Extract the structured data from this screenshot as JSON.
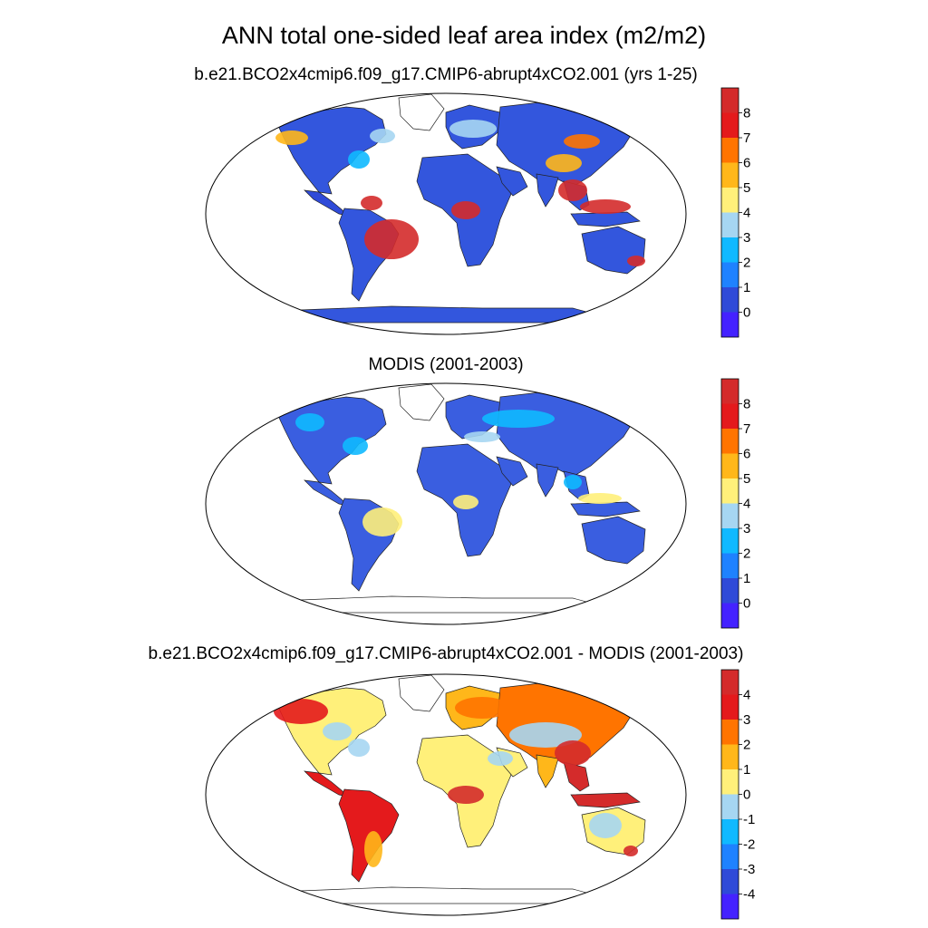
{
  "title": "ANN total one-sided leaf area index (m2/m2)",
  "chart_data": [
    {
      "type": "heatmap",
      "title": "b.e21.BCO2x4cmip6.f09_g17.CMIP6-abrupt4xCO2.001 (yrs 1-25)",
      "colorbar_ticks": [
        "8",
        "7",
        "6",
        "5",
        "4",
        "3",
        "2",
        "1",
        "0"
      ],
      "colorbar_colors": [
        "#d42b2b",
        "#e41a1c",
        "#ff7400",
        "#ffb71a",
        "#fff07a",
        "#a6d6f2",
        "#10b9ff",
        "#1f82ff",
        "#2f4ad8",
        "#4422ff"
      ]
    },
    {
      "type": "heatmap",
      "title": "MODIS (2001-2003)",
      "colorbar_ticks": [
        "8",
        "7",
        "6",
        "5",
        "4",
        "3",
        "2",
        "1",
        "0"
      ],
      "colorbar_colors": [
        "#d42b2b",
        "#e41a1c",
        "#ff7400",
        "#ffb71a",
        "#fff07a",
        "#a6d6f2",
        "#10b9ff",
        "#1f82ff",
        "#2f4ad8",
        "#4422ff"
      ]
    },
    {
      "type": "heatmap",
      "title": "b.e21.BCO2x4cmip6.f09_g17.CMIP6-abrupt4xCO2.001 - MODIS (2001-2003)",
      "colorbar_ticks": [
        "4",
        "3",
        "2",
        "1",
        "0",
        "-1",
        "-2",
        "-3",
        "-4"
      ],
      "colorbar_colors": [
        "#d42b2b",
        "#e41a1c",
        "#ff7400",
        "#ffb71a",
        "#fff07a",
        "#a6d6f2",
        "#10b9ff",
        "#1f82ff",
        "#2f4ad8",
        "#4422ff"
      ]
    }
  ],
  "colors": {
    "land_model": "#3356dd",
    "land_modis": "#3a5ee0",
    "land_diff": "#fff07a",
    "hot": "#d42b2b",
    "warm": "#ff7400",
    "mid": "#ffb71a",
    "cool": "#a6d6f2",
    "light_blue": "#10b9ff"
  }
}
